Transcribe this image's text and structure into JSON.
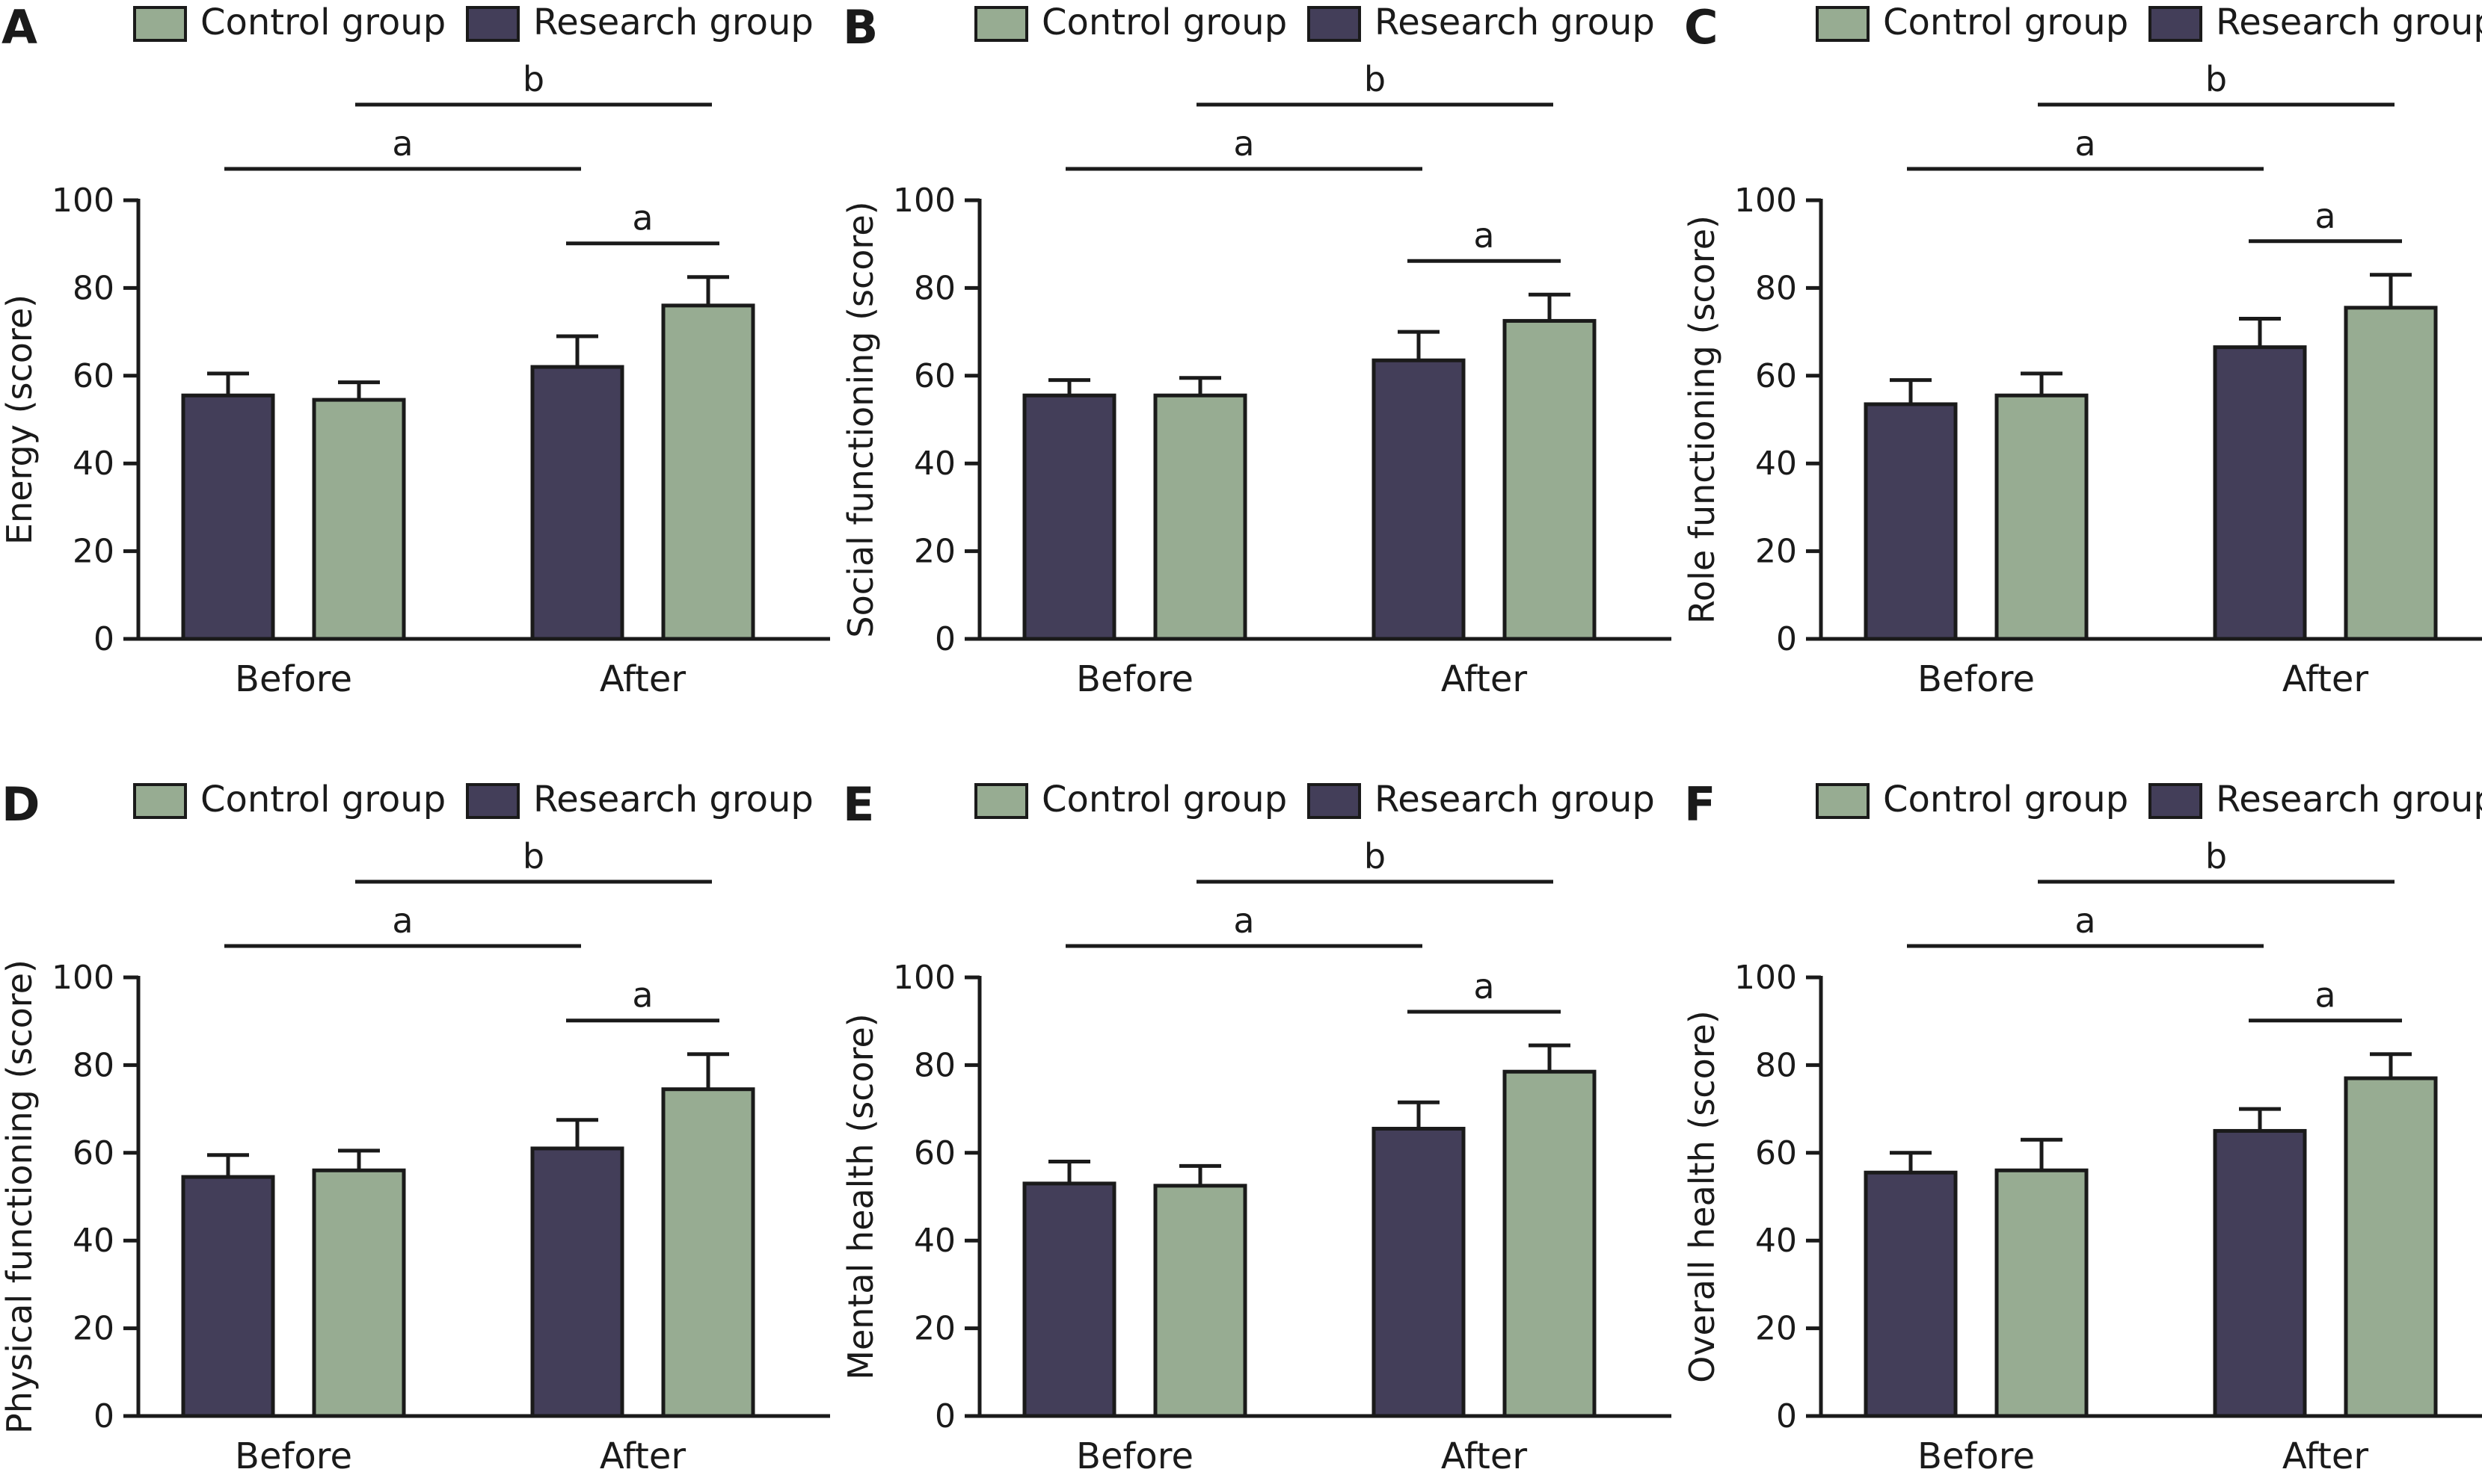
{
  "colors": {
    "research": "#433e59",
    "control": "#97ac92",
    "ink": "#1a1a1a"
  },
  "legend": [
    "Control group",
    "Research group"
  ],
  "chart_data": [
    {
      "panel": "A",
      "type": "bar",
      "ylabel": "Energy (score)",
      "categories": [
        "Before",
        "After"
      ],
      "ylim": [
        0,
        100
      ],
      "yticks": [
        0,
        20,
        40,
        60,
        80,
        100
      ],
      "series": [
        {
          "name": "Research group",
          "values": [
            55.5,
            62.0
          ],
          "errors": [
            5,
            7
          ]
        },
        {
          "name": "Control group",
          "values": [
            54.5,
            76.0
          ],
          "errors": [
            4,
            6.5
          ]
        }
      ],
      "annotations": [
        {
          "label": "a",
          "span": "research-before to research-after"
        },
        {
          "label": "b",
          "span": "control-before to control-after"
        },
        {
          "label": "a",
          "span": "research-after to control-after"
        }
      ]
    },
    {
      "panel": "B",
      "type": "bar",
      "ylabel": "Social functioning (score)",
      "categories": [
        "Before",
        "After"
      ],
      "ylim": [
        0,
        100
      ],
      "yticks": [
        0,
        20,
        40,
        60,
        80,
        100
      ],
      "series": [
        {
          "name": "Research group",
          "values": [
            55.5,
            63.5
          ],
          "errors": [
            3.5,
            6.5
          ]
        },
        {
          "name": "Control group",
          "values": [
            55.5,
            72.5
          ],
          "errors": [
            4,
            6
          ]
        }
      ],
      "annotations": [
        {
          "label": "a",
          "span": "research-before to research-after"
        },
        {
          "label": "b",
          "span": "control-before to control-after"
        },
        {
          "label": "a",
          "span": "research-after to control-after"
        }
      ]
    },
    {
      "panel": "C",
      "type": "bar",
      "ylabel": "Role functioning (score)",
      "categories": [
        "Before",
        "After"
      ],
      "ylim": [
        0,
        100
      ],
      "yticks": [
        0,
        20,
        40,
        60,
        80,
        100
      ],
      "series": [
        {
          "name": "Research group",
          "values": [
            53.5,
            66.5
          ],
          "errors": [
            5.5,
            6.5
          ]
        },
        {
          "name": "Control group",
          "values": [
            55.5,
            75.5
          ],
          "errors": [
            5,
            7.5
          ]
        }
      ],
      "annotations": [
        {
          "label": "a",
          "span": "research-before to research-after"
        },
        {
          "label": "b",
          "span": "control-before to control-after"
        },
        {
          "label": "a",
          "span": "research-after to control-after"
        }
      ]
    },
    {
      "panel": "D",
      "type": "bar",
      "ylabel": "Physical functioning (score)",
      "categories": [
        "Before",
        "After"
      ],
      "ylim": [
        0,
        100
      ],
      "yticks": [
        0,
        20,
        40,
        60,
        80,
        100
      ],
      "series": [
        {
          "name": "Research group",
          "values": [
            54.5,
            61.0
          ],
          "errors": [
            5,
            6.5
          ]
        },
        {
          "name": "Control group",
          "values": [
            56.0,
            74.5
          ],
          "errors": [
            4.5,
            8
          ]
        }
      ],
      "annotations": [
        {
          "label": "a",
          "span": "research-before to research-after"
        },
        {
          "label": "b",
          "span": "control-before to control-after"
        },
        {
          "label": "a",
          "span": "research-after to control-after"
        }
      ]
    },
    {
      "panel": "E",
      "type": "bar",
      "ylabel": "Mental health (score)",
      "categories": [
        "Before",
        "After"
      ],
      "ylim": [
        0,
        100
      ],
      "yticks": [
        0,
        20,
        40,
        60,
        80,
        100
      ],
      "series": [
        {
          "name": "Research group",
          "values": [
            53.0,
            65.5
          ],
          "errors": [
            5,
            6
          ]
        },
        {
          "name": "Control group",
          "values": [
            52.5,
            78.5
          ],
          "errors": [
            4.5,
            6
          ]
        }
      ],
      "annotations": [
        {
          "label": "a",
          "span": "research-before to research-after"
        },
        {
          "label": "b",
          "span": "control-before to control-after"
        },
        {
          "label": "a",
          "span": "research-after to control-after"
        }
      ]
    },
    {
      "panel": "F",
      "type": "bar",
      "ylabel": "Overall health (score)",
      "categories": [
        "Before",
        "After"
      ],
      "ylim": [
        0,
        100
      ],
      "yticks": [
        0,
        20,
        40,
        60,
        80,
        100
      ],
      "series": [
        {
          "name": "Research group",
          "values": [
            55.5,
            65.0
          ],
          "errors": [
            4.5,
            5
          ]
        },
        {
          "name": "Control group",
          "values": [
            56.0,
            77.0
          ],
          "errors": [
            7,
            5.5
          ]
        }
      ],
      "annotations": [
        {
          "label": "a",
          "span": "research-before to research-after"
        },
        {
          "label": "b",
          "span": "control-before to control-after"
        },
        {
          "label": "a",
          "span": "research-after to control-after"
        }
      ]
    }
  ]
}
